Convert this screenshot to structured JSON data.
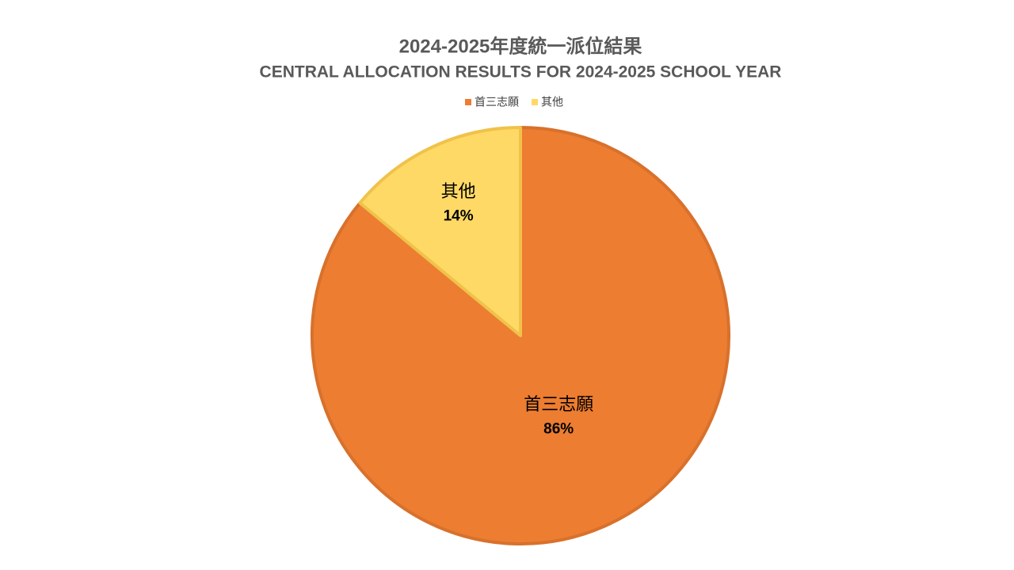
{
  "chart_data": {
    "type": "pie",
    "title": "2024-2025年度統一派位結果",
    "subtitle": "CENTRAL ALLOCATION RESULTS FOR 2024-2025 SCHOOL YEAR",
    "categories": [
      "首三志願",
      "其他"
    ],
    "values": [
      86,
      14
    ],
    "value_labels": [
      "86%",
      "14%"
    ],
    "colors": [
      "#ed7d31",
      "#ffd966"
    ],
    "edge_colors": [
      "#d8712c",
      "#f0c24a"
    ],
    "legend": "top"
  }
}
